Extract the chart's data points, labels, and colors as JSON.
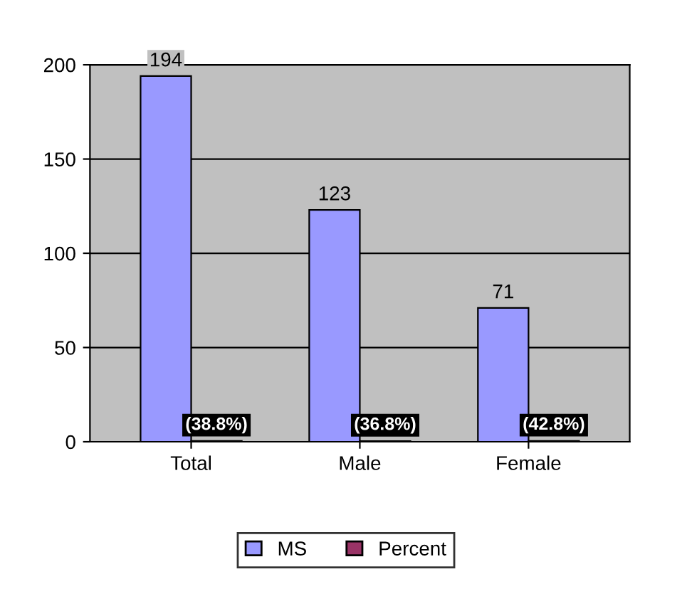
{
  "chart_data": {
    "type": "bar",
    "categories": [
      "Total",
      "Male",
      "Female"
    ],
    "series": [
      {
        "name": "MS",
        "color": "#9999ff",
        "values": [
          194,
          123,
          71
        ],
        "value_labels": [
          "194",
          "123",
          "71"
        ]
      },
      {
        "name": "Percent",
        "color": "#993366",
        "values": [
          0.388,
          0.368,
          0.428
        ],
        "value_labels": [
          "(38.8%)",
          "(36.8%)",
          "(42.8%)"
        ]
      }
    ],
    "ylim": [
      0,
      200
    ],
    "yticks": [
      0,
      50,
      100,
      150,
      200
    ],
    "grid": "y",
    "legend": "bottom"
  }
}
